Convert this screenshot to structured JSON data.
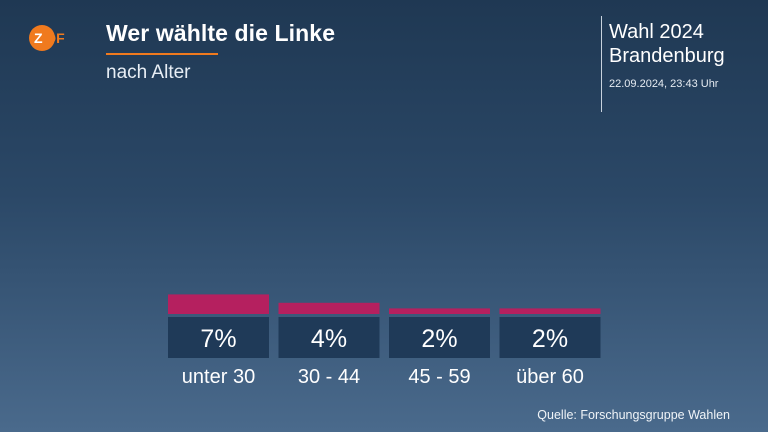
{
  "header": {
    "logo": "ZDF",
    "title": "Wer wählte die Linke",
    "subtitle": "nach Alter",
    "election_line1": "Wahl 2024",
    "election_line2": "Brandenburg",
    "timestamp": "22.09.2024, 23:43 Uhr"
  },
  "colors": {
    "bar": "#b5205f",
    "label_box": "#1f3a58",
    "accent": "#f07a1e"
  },
  "chart_data": {
    "type": "bar",
    "categories": [
      "unter 30",
      "30 - 44",
      "45 - 59",
      "über 60"
    ],
    "values": [
      7,
      4,
      2,
      2
    ],
    "value_labels": [
      "7%",
      "4%",
      "2%",
      "2%"
    ],
    "unit": "%"
  },
  "footer": {
    "source": "Quelle: Forschungsgruppe Wahlen"
  }
}
